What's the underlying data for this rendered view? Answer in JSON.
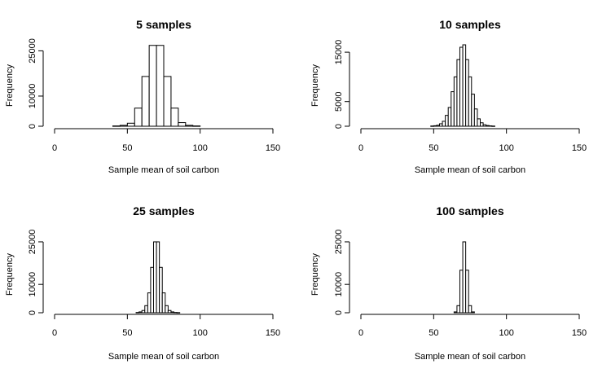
{
  "chart_data": [
    {
      "type": "bar",
      "title": "5 samples",
      "xlabel": "Sample mean of soil carbon",
      "ylabel": "Frequency",
      "xlim": [
        0,
        150
      ],
      "ylim": [
        0,
        27000
      ],
      "xticks": [
        0,
        50,
        100,
        150
      ],
      "yticks": [
        0,
        10000,
        25000
      ],
      "bins": [
        [
          40,
          45
        ],
        [
          45,
          50
        ],
        [
          50,
          55
        ],
        [
          55,
          60
        ],
        [
          60,
          65
        ],
        [
          65,
          70
        ],
        [
          70,
          75
        ],
        [
          75,
          80
        ],
        [
          80,
          85
        ],
        [
          85,
          90
        ],
        [
          90,
          95
        ],
        [
          95,
          100
        ]
      ],
      "values": [
        100,
        300,
        1000,
        6000,
        16500,
        26800,
        26800,
        16500,
        6000,
        1200,
        300,
        100
      ]
    },
    {
      "type": "bar",
      "title": "10 samples",
      "xlabel": "Sample mean of soil carbon",
      "ylabel": "Frequency",
      "xlim": [
        0,
        150
      ],
      "ylim": [
        0,
        16500
      ],
      "xticks": [
        0,
        50,
        100,
        150
      ],
      "yticks": [
        0,
        5000,
        15000
      ],
      "bins": [
        [
          48,
          50
        ],
        [
          50,
          52
        ],
        [
          52,
          54
        ],
        [
          54,
          56
        ],
        [
          56,
          58
        ],
        [
          58,
          60
        ],
        [
          60,
          62
        ],
        [
          62,
          64
        ],
        [
          64,
          66
        ],
        [
          66,
          68
        ],
        [
          68,
          70
        ],
        [
          70,
          72
        ],
        [
          72,
          74
        ],
        [
          74,
          76
        ],
        [
          76,
          78
        ],
        [
          78,
          80
        ],
        [
          80,
          82
        ],
        [
          82,
          84
        ],
        [
          84,
          86
        ],
        [
          86,
          88
        ],
        [
          88,
          90
        ],
        [
          90,
          92
        ]
      ],
      "values": [
        50,
        100,
        200,
        500,
        1000,
        2200,
        3800,
        7000,
        10000,
        13500,
        16000,
        16500,
        13500,
        10000,
        6500,
        3500,
        1500,
        700,
        300,
        150,
        80,
        40
      ]
    },
    {
      "type": "bar",
      "title": "25 samples",
      "xlabel": "Sample mean of soil carbon",
      "ylabel": "Frequency",
      "xlim": [
        0,
        150
      ],
      "ylim": [
        0,
        27000
      ],
      "xticks": [
        0,
        50,
        100,
        150
      ],
      "yticks": [
        0,
        10000,
        25000
      ],
      "bins": [
        [
          56,
          58
        ],
        [
          58,
          60
        ],
        [
          60,
          62
        ],
        [
          62,
          64
        ],
        [
          64,
          66
        ],
        [
          66,
          68
        ],
        [
          68,
          70
        ],
        [
          70,
          72
        ],
        [
          72,
          74
        ],
        [
          74,
          76
        ],
        [
          76,
          78
        ],
        [
          78,
          80
        ],
        [
          80,
          82
        ],
        [
          82,
          84
        ],
        [
          84,
          86
        ]
      ],
      "values": [
        100,
        300,
        800,
        2500,
        7000,
        16000,
        25000,
        25000,
        16000,
        7000,
        2500,
        800,
        300,
        100,
        50
      ]
    },
    {
      "type": "bar",
      "title": "100 samples",
      "xlabel": "Sample mean of soil carbon",
      "ylabel": "Frequency",
      "xlim": [
        0,
        150
      ],
      "ylim": [
        0,
        27000
      ],
      "xticks": [
        0,
        50,
        100,
        150
      ],
      "yticks": [
        0,
        10000,
        25000
      ],
      "bins": [
        [
          64,
          66
        ],
        [
          66,
          68
        ],
        [
          68,
          70
        ],
        [
          70,
          72
        ],
        [
          72,
          74
        ],
        [
          74,
          76
        ],
        [
          76,
          78
        ]
      ],
      "values": [
        300,
        2500,
        15000,
        25000,
        15000,
        2500,
        300
      ]
    }
  ]
}
